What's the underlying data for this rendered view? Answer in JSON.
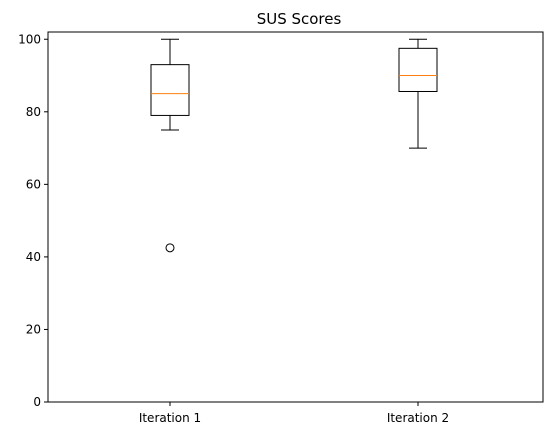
{
  "chart_data": {
    "type": "box",
    "title": "SUS Scores",
    "xlabel": "",
    "ylabel": "",
    "ylim": [
      0,
      102
    ],
    "yticks": [
      0,
      20,
      40,
      60,
      80,
      100
    ],
    "categories": [
      "Iteration 1",
      "Iteration 2"
    ],
    "boxes": [
      {
        "category": "Iteration 1",
        "whisker_low": 75,
        "q1": 79,
        "median": 85,
        "q3": 93,
        "whisker_high": 100,
        "outliers": [
          42.5
        ]
      },
      {
        "category": "Iteration 2",
        "whisker_low": 70,
        "q1": 85.6,
        "median": 90,
        "q3": 97.5,
        "whisker_high": 100,
        "outliers": []
      }
    ],
    "colors": {
      "median": "#ff7f0e",
      "box": "#000000"
    },
    "grid": false,
    "legend": "none"
  }
}
